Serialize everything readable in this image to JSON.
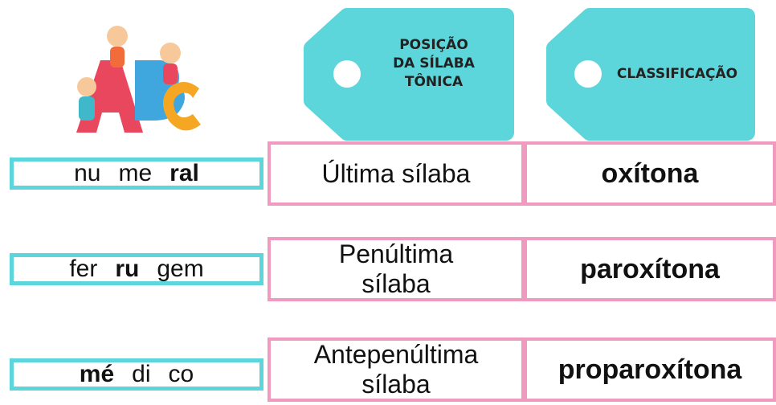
{
  "headers": [
    {
      "lines": [
        "POSIÇÃO",
        "DA SÍLABA",
        "TÔNICA"
      ]
    },
    {
      "lines": [
        "CLASSIFICAÇÃO"
      ]
    }
  ],
  "rows": [
    {
      "syllables": [
        {
          "text": "nu",
          "bold": false
        },
        {
          "text": "me",
          "bold": false
        },
        {
          "text": "ral",
          "bold": true
        }
      ],
      "position": "Última sílaba",
      "classification": "oxítona"
    },
    {
      "syllables": [
        {
          "text": "fer",
          "bold": false
        },
        {
          "text": "ru",
          "bold": true
        },
        {
          "text": "gem",
          "bold": false
        }
      ],
      "position": "Penúltima sílaba",
      "classification": "paroxítona"
    },
    {
      "syllables": [
        {
          "text": "mé",
          "bold": true
        },
        {
          "text": "di",
          "bold": false
        },
        {
          "text": "co",
          "bold": false
        }
      ],
      "position": "Antepenúltima sílaba",
      "classification": "proparoxítona"
    }
  ]
}
